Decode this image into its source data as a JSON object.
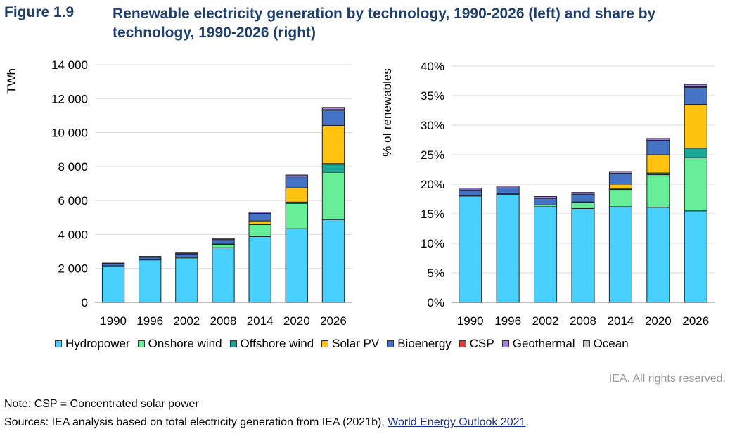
{
  "figure": {
    "number": "Figure 1.9",
    "title": "Renewable electricity generation by technology, 1990-2026 (left) and share by technology, 1990-2026 (right)"
  },
  "colors": {
    "Hydropower": "#48d1ff",
    "Onshore wind": "#66ee99",
    "Offshore wind": "#1aa896",
    "Solar PV": "#ffc20e",
    "Bioenergy": "#4472c4",
    "CSP": "#e23b3b",
    "Geothermal": "#a684e8",
    "Ocean": "#c8c8c8"
  },
  "chart_data": [
    {
      "type": "bar",
      "stacked": true,
      "ylabel": "TWh",
      "ylim": [
        0,
        14000
      ],
      "yticks": [
        0,
        2000,
        4000,
        6000,
        8000,
        10000,
        12000,
        14000
      ],
      "ytick_labels": [
        "0",
        "2 000",
        "4 000",
        "6 000",
        "8 000",
        "10 000",
        "12 000",
        "14 000"
      ],
      "categories": [
        "1990",
        "1996",
        "2002",
        "2008",
        "2014",
        "2020",
        "2026"
      ],
      "series": [
        {
          "name": "Hydropower",
          "values": [
            2150,
            2500,
            2620,
            3220,
            3880,
            4340,
            4880
          ]
        },
        {
          "name": "Onshore wind",
          "values": [
            4,
            10,
            50,
            200,
            700,
            1490,
            2780
          ]
        },
        {
          "name": "Offshore wind",
          "values": [
            0,
            0,
            1,
            10,
            20,
            80,
            510
          ]
        },
        {
          "name": "Solar PV",
          "values": [
            1,
            1,
            1,
            12,
            200,
            840,
            2250
          ]
        },
        {
          "name": "Bioenergy",
          "values": [
            120,
            150,
            180,
            260,
            440,
            640,
            900
          ]
        },
        {
          "name": "CSP",
          "values": [
            1,
            1,
            1,
            1,
            9,
            13,
            30
          ]
        },
        {
          "name": "Geothermal",
          "values": [
            36,
            41,
            52,
            64,
            74,
            90,
            125
          ]
        },
        {
          "name": "Ocean",
          "values": [
            1,
            1,
            1,
            1,
            1,
            1,
            5
          ]
        }
      ]
    },
    {
      "type": "bar",
      "stacked": true,
      "ylabel": "% of renewables",
      "ylim": [
        0,
        40
      ],
      "yticks": [
        0,
        5,
        10,
        15,
        20,
        25,
        30,
        35,
        40
      ],
      "ytick_labels": [
        "0%",
        "5%",
        "10%",
        "15%",
        "20%",
        "25%",
        "30%",
        "35%",
        "40%"
      ],
      "categories": [
        "1990",
        "1996",
        "2002",
        "2008",
        "2014",
        "2020",
        "2026"
      ],
      "series": [
        {
          "name": "Hydropower",
          "values": [
            18.0,
            18.3,
            16.2,
            15.9,
            16.2,
            16.1,
            15.5
          ]
        },
        {
          "name": "Onshore wind",
          "values": [
            0.03,
            0.07,
            0.3,
            1.0,
            2.9,
            5.5,
            9.0
          ]
        },
        {
          "name": "Offshore wind",
          "values": [
            0,
            0,
            0,
            0.05,
            0.1,
            0.3,
            1.6
          ]
        },
        {
          "name": "Solar PV",
          "values": [
            0,
            0.01,
            0.01,
            0.06,
            0.8,
            3.1,
            7.4
          ]
        },
        {
          "name": "Bioenergy",
          "values": [
            1.0,
            1.0,
            1.1,
            1.3,
            1.8,
            2.4,
            2.9
          ]
        },
        {
          "name": "CSP",
          "values": [
            0,
            0,
            0,
            0,
            0.04,
            0.05,
            0.1
          ]
        },
        {
          "name": "Geothermal",
          "values": [
            0.3,
            0.3,
            0.3,
            0.3,
            0.3,
            0.3,
            0.4
          ]
        },
        {
          "name": "Ocean",
          "values": [
            0,
            0,
            0,
            0,
            0,
            0,
            0.02
          ]
        }
      ]
    }
  ],
  "legend": [
    "Hydropower",
    "Onshore wind",
    "Offshore wind",
    "Solar PV",
    "Bioenergy",
    "CSP",
    "Geothermal",
    "Ocean"
  ],
  "rights": "IEA. All rights reserved.",
  "note": "Note: CSP = Concentrated solar power",
  "sources_prefix": "Sources: IEA analysis based on total electricity generation from IEA (2021b), ",
  "sources_link": "World Energy Outlook 2021",
  "sources_suffix": "."
}
